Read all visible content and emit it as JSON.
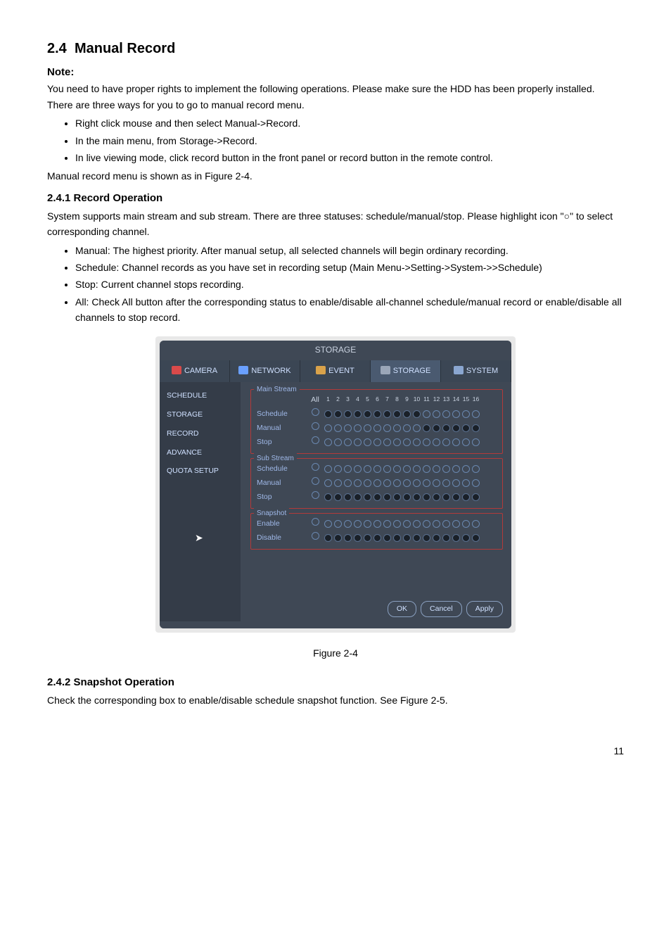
{
  "section": {
    "number": "2.4",
    "title": "Manual Record",
    "note_label": "Note:",
    "p1": "You need to have proper rights to implement the following operations. Please make sure the HDD has been properly installed.",
    "p2": "There are three ways for you to go to manual record menu.",
    "ways": [
      "Right click mouse and then select Manual->Record.",
      "In the main menu, from Storage->Record.",
      "In live viewing mode, click record button in the front panel or record button in the remote control."
    ],
    "p3": "Manual record menu is shown as in Figure 2-4."
  },
  "sub1": {
    "heading": "2.4.1  Record Operation",
    "p1": "System supports main stream and sub stream. There are three statuses: schedule/manual/stop. Please highlight icon \"○\" to select corresponding channel.",
    "items": [
      "Manual: The highest priority. After manual setup, all selected channels will begin ordinary recording.",
      "Schedule: Channel records as you have set in recording setup (Main Menu->Setting->System->>Schedule)",
      "Stop: Current channel stops recording.",
      "All: Check All button after the corresponding status to enable/disable all-channel schedule/manual record or enable/disable all channels to stop record."
    ]
  },
  "figure_caption": "Figure 2-4",
  "sub2": {
    "heading": "2.4.2  Snapshot Operation",
    "p1": "Check the corresponding box to enable/disable schedule snapshot function. See Figure 2-5."
  },
  "page_number": "11",
  "shot": {
    "title": "STORAGE",
    "tabs": [
      "CAMERA",
      "NETWORK",
      "EVENT",
      "STORAGE",
      "SYSTEM"
    ],
    "tab_icon_colors": [
      "#d94a4a",
      "#6aa0ff",
      "#d9a24a",
      "#9aa6b8",
      "#8aa6d0"
    ],
    "active_tab_index": 3,
    "sidebar": [
      "SCHEDULE",
      "STORAGE",
      "RECORD",
      "ADVANCE",
      "QUOTA SETUP"
    ],
    "all_label": "All",
    "channels": [
      "1",
      "2",
      "3",
      "4",
      "5",
      "6",
      "7",
      "8",
      "9",
      "10",
      "11",
      "12",
      "13",
      "14",
      "15",
      "16"
    ],
    "groups": [
      {
        "label": "Main Stream",
        "show_header": true,
        "rows": [
          {
            "label": "Schedule",
            "all": "open",
            "pattern": "FFFFFFFFFFOOOOOO"
          },
          {
            "label": "Manual",
            "all": "open",
            "pattern": "OOOOOOOOOOFFFFFF"
          },
          {
            "label": "Stop",
            "all": "open",
            "pattern": "OOOOOOOOOOOOOOOO"
          }
        ]
      },
      {
        "label": "Sub Stream",
        "show_header": false,
        "rows": [
          {
            "label": "Schedule",
            "all": "open",
            "pattern": "OOOOOOOOOOOOOOOO"
          },
          {
            "label": "Manual",
            "all": "open",
            "pattern": "OOOOOOOOOOOOOOOO"
          },
          {
            "label": "Stop",
            "all": "open",
            "pattern": "FFFFFFFFFFFFFFFF"
          }
        ]
      },
      {
        "label": "Snapshot",
        "show_header": false,
        "rows": [
          {
            "label": "Enable",
            "all": "open",
            "pattern": "OOOOOOOOOOOOOOOO"
          },
          {
            "label": "Disable",
            "all": "open",
            "pattern": "FFFFFFFFFFFFFFFF"
          }
        ]
      }
    ],
    "buttons": [
      "OK",
      "Cancel",
      "Apply"
    ],
    "colors": {
      "panel_bg": "#3f4855",
      "sidebar_bg": "#343c48",
      "label": "#9fb8e8",
      "text": "#cfe0ff",
      "border_group": "#b33a3a",
      "dot_fill": "#1a2028",
      "dot_border": "#6a88b0"
    }
  }
}
